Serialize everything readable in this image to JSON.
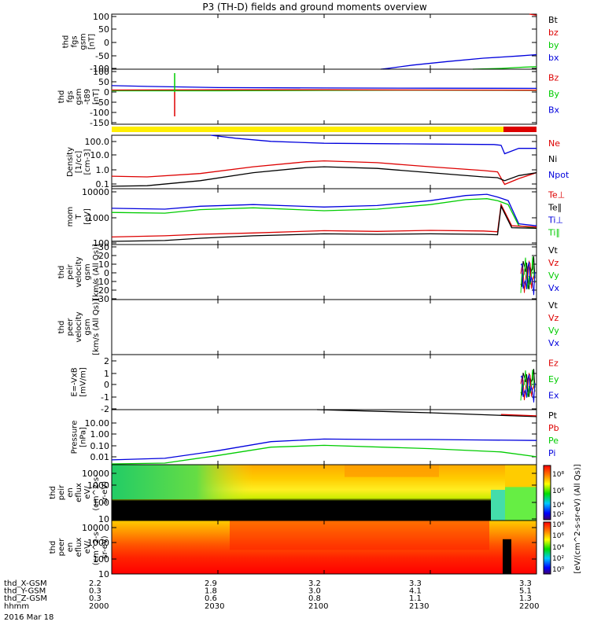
{
  "title": "P3 (TH-D) fields and ground moments overview",
  "chart_data": {
    "type": "line",
    "title": "P3 (TH-D) fields and ground moments overview",
    "x_ticks": [
      "2000",
      "2030",
      "2100",
      "2130",
      "2200"
    ],
    "date_label": "2016 Mar 18",
    "ephemeris": [
      {
        "label": "thd_X-GSM",
        "values": [
          "2.2",
          "2.9",
          "3.2",
          "3.3",
          "3.3"
        ]
      },
      {
        "label": "thd_Y-GSM",
        "values": [
          "0.3",
          "1.8",
          "3.0",
          "4.1",
          "5.1"
        ]
      },
      {
        "label": "thd_Z-GSM",
        "values": [
          "0.3",
          "0.6",
          "0.8",
          "1.1",
          "1.3"
        ]
      },
      {
        "label": "hhmm",
        "values": [
          "2000",
          "2030",
          "2100",
          "2130",
          "2200"
        ]
      }
    ],
    "panels": [
      {
        "ylabel": [
          "thd",
          "fgs",
          "gsm",
          "[nT]"
        ],
        "ylim": [
          -100,
          100
        ],
        "yticks": [
          "100",
          "50",
          "0",
          "-50",
          "-100"
        ],
        "legend": [
          "Bt",
          "bz",
          "by",
          "bx"
        ],
        "legend_colors": [
          "#000000",
          "#dd0000",
          "#00cc00",
          "#0000dd"
        ],
        "series": [
          {
            "name": "bz",
            "color": "#dd0000",
            "x": [
              2158,
              2200
            ],
            "y": [
              100,
              96
            ]
          },
          {
            "name": "by",
            "color": "#00cc00",
            "x": [
              2142,
              2150,
              2156,
              2200
            ],
            "y": [
              -100,
              -97,
              -93,
              -91
            ]
          },
          {
            "name": "bx",
            "color": "#0000dd",
            "x": [
              2116,
              2118,
              2125,
              2135,
              2145,
              2155,
              2200
            ],
            "y": [
              -100,
              -97,
              -85,
              -72,
              -60,
              -52,
              -47
            ]
          }
        ]
      },
      {
        "ylabel": [
          "thd",
          "fgs",
          "gsm",
          "-t89",
          "[nT]"
        ],
        "ylim": [
          -175,
          100
        ],
        "yticks": [
          "100",
          "50",
          "0",
          "-50",
          "-100",
          "-150"
        ],
        "legend": [
          "Bz",
          "By",
          "Bx"
        ],
        "legend_colors": [
          "#dd0000",
          "#00cc00",
          "#0000dd"
        ],
        "series": [
          {
            "name": "Bx",
            "color": "#0000dd",
            "x": [
              2000,
              2010,
              2030,
              2100,
              2130,
              2200
            ],
            "y": [
              18,
              14,
              8,
              6,
              5,
              4
            ]
          },
          {
            "name": "By",
            "color": "#00cc00",
            "x": [
              2000,
              2030,
              2100,
              2130,
              2200
            ],
            "y": [
              -8,
              -8,
              -6,
              -5,
              -6
            ]
          },
          {
            "name": "Bz",
            "color": "#dd0000",
            "x": [
              2000,
              2030,
              2100,
              2130,
              2200
            ],
            "y": [
              -4,
              -3,
              -3,
              -4,
              -5
            ]
          }
        ]
      },
      {
        "ylabel": [
          "Density",
          "[1/cc]",
          "[cm-3]"
        ],
        "ylim": [
          0.1,
          150
        ],
        "log": true,
        "yticks": [
          "100.0",
          "10.0",
          "1.0",
          "0.1"
        ],
        "legend": [
          "Ne",
          "Ni",
          "Npot"
        ],
        "legend_colors": [
          "#dd0000",
          "#000000",
          "#0000dd"
        ],
        "series": [
          {
            "name": "Npot",
            "color": "#0000dd",
            "x": [
              2028,
              2035,
              2045,
              2100,
              2130,
              2148,
              2150,
              2151,
              2155,
              2200
            ],
            "y": [
              150,
              100,
              65,
              50,
              45,
              42,
              38,
              12,
              25,
              25
            ]
          },
          {
            "name": "Ne",
            "color": "#dd0000",
            "x": [
              2000,
              2010,
              2025,
              2040,
              2055,
              2100,
              2115,
              2130,
              2145,
              2149,
              2151,
              2155,
              2200
            ],
            "y": [
              0.55,
              0.5,
              0.8,
              2.0,
              4.0,
              4.5,
              3.5,
              2.0,
              1.2,
              1.0,
              0.18,
              0.4,
              0.9
            ]
          },
          {
            "name": "Ni",
            "color": "#000000",
            "x": [
              2000,
              2010,
              2025,
              2040,
              2055,
              2100,
              2115,
              2130,
              2145,
              2149,
              2151,
              2155,
              2200
            ],
            "y": [
              0.14,
              0.15,
              0.3,
              0.9,
              1.8,
              2.0,
              1.6,
              0.9,
              0.5,
              0.45,
              0.3,
              0.6,
              0.9
            ]
          }
        ]
      },
      {
        "ylabel": [
          "mom",
          "T",
          "[eV]"
        ],
        "ylim": [
          90,
          15000
        ],
        "log": true,
        "yticks": [
          "10000",
          "1000",
          "100"
        ],
        "legend": [
          "Te⊥",
          "Te∥",
          "Ti⊥",
          "Ti∥"
        ],
        "legend_colors": [
          "#dd0000",
          "#000000",
          "#0000dd",
          "#00cc00"
        ],
        "series": [
          {
            "name": "Ti⊥",
            "color": "#0000dd",
            "x": [
              2000,
              2015,
              2025,
              2040,
              2100,
              2115,
              2130,
              2140,
              2146,
              2149,
              2152,
              2155,
              2200
            ],
            "y": [
              2500,
              2300,
              3000,
              3500,
              2800,
              3200,
              5000,
              8000,
              9000,
              7000,
              5000,
              600,
              500
            ]
          },
          {
            "name": "Ti∥",
            "color": "#00cc00",
            "x": [
              2000,
              2015,
              2025,
              2040,
              2100,
              2115,
              2130,
              2140,
              2146,
              2149,
              2152,
              2155,
              2200
            ],
            "y": [
              1700,
              1600,
              2200,
              2600,
              2000,
              2300,
              3500,
              5500,
              6000,
              5000,
              3500,
              500,
              400
            ]
          },
          {
            "name": "Te⊥",
            "color": "#dd0000",
            "x": [
              2000,
              2015,
              2025,
              2040,
              2100,
              2115,
              2130,
              2145,
              2149,
              2150,
              2153,
              2200
            ],
            "y": [
              180,
              200,
              230,
              260,
              320,
              300,
              330,
              310,
              290,
              3500,
              500,
              450
            ]
          },
          {
            "name": "Te∥",
            "color": "#000000",
            "x": [
              2000,
              2015,
              2025,
              2040,
              2100,
              2115,
              2130,
              2145,
              2149,
              2150,
              2153,
              2200
            ],
            "y": [
              120,
              130,
              160,
              200,
              240,
              230,
              240,
              230,
              220,
              3000,
              420,
              400
            ]
          }
        ]
      },
      {
        "ylabel": [
          "thd",
          "peir",
          "velocity",
          "gsm",
          "[km/s (All Qs)]"
        ],
        "ylim": [
          -30,
          30
        ],
        "yticks": [
          "30",
          "20",
          "10",
          "0",
          "-10",
          "-20",
          "-30"
        ],
        "legend": [
          "Vt",
          "Vz",
          "Vy",
          "Vx"
        ],
        "legend_colors": [
          "#000000",
          "#dd0000",
          "#00cc00",
          "#0000dd"
        ],
        "series": []
      },
      {
        "ylabel": [
          "thd",
          "peer",
          "velocity",
          "gsm",
          "[km/s (All Qs)]"
        ],
        "ylim": [
          -1,
          1
        ],
        "yticks": [],
        "legend": [
          "Vt",
          "Vz",
          "Vy",
          "Vx"
        ],
        "legend_colors": [
          "#000000",
          "#dd0000",
          "#00cc00",
          "#0000dd"
        ],
        "series": []
      },
      {
        "ylabel": [
          "E=-VxB",
          "[mV/m]"
        ],
        "ylim": [
          -2,
          2
        ],
        "yticks": [
          "2",
          "1",
          "0",
          "-1",
          "-2"
        ],
        "legend": [
          "Ez",
          "Ey",
          "Ex"
        ],
        "legend_colors": [
          "#dd0000",
          "#00cc00",
          "#0000dd"
        ],
        "series": []
      },
      {
        "ylabel": [
          "Pressure",
          "[nPa]"
        ],
        "ylim": [
          0.008,
          22
        ],
        "log": true,
        "yticks": [
          "10.00",
          "1.00",
          "0.10",
          "0.01"
        ],
        "legend": [
          "Pt",
          "Pb",
          "Pe",
          "Pi"
        ],
        "legend_colors": [
          "#000000",
          "#dd0000",
          "#00cc00",
          "#0000dd"
        ],
        "series": [
          {
            "name": "Pt",
            "color": "#000000",
            "x": [
              2058,
              2130,
              2200
            ],
            "y": [
              22,
              14,
              8
            ]
          },
          {
            "name": "Pb",
            "color": "#dd0000",
            "x": [
              2150,
              2200
            ],
            "y": [
              11,
              9
            ]
          },
          {
            "name": "Pi",
            "color": "#0000dd",
            "x": [
              2000,
              2015,
              2030,
              2045,
              2100,
              2115,
              2130,
              2145,
              2200
            ],
            "y": [
              0.016,
              0.02,
              0.06,
              0.22,
              0.32,
              0.3,
              0.3,
              0.28,
              0.26
            ]
          },
          {
            "name": "Pe",
            "color": "#00cc00",
            "x": [
              2000,
              2015,
              2030,
              2045,
              2100,
              2130,
              2150,
              2200
            ],
            "y": [
              0.009,
              0.01,
              0.03,
              0.1,
              0.13,
              0.08,
              0.05,
              0.025
            ]
          }
        ]
      },
      {
        "ylabel": [
          "thd",
          "peir",
          "en",
          "eflux",
          "eV/",
          "(cm^2-s-",
          "sr-eV)"
        ],
        "ylim": [
          6,
          25000
        ],
        "log": true,
        "yticks": [
          "10000",
          "1000",
          "100",
          "10"
        ],
        "spectrogram": "ion",
        "legend": [],
        "legend_colors": [],
        "series": []
      },
      {
        "ylabel": [
          "thd",
          "peer",
          "en",
          "eflux",
          "eV/",
          "(cm^2-s-",
          "sr-eV)"
        ],
        "ylim": [
          6,
          25000
        ],
        "log": true,
        "yticks": [
          "10000",
          "1000",
          "100",
          "10"
        ],
        "spectrogram": "electron",
        "legend": [],
        "legend_colors": [],
        "series": []
      }
    ],
    "colorbar": {
      "label": "[eV/(cm^2-s-sr-eV) (All Qs)]",
      "ion_ticks": [
        "10⁸",
        "10⁶",
        "10⁴",
        "10²"
      ],
      "electron_ticks": [
        "10⁸",
        "10⁶",
        "10⁴",
        "10²",
        "10⁰"
      ]
    },
    "mode_bar_colors": [
      "#ffee00",
      "#dd0000"
    ]
  }
}
